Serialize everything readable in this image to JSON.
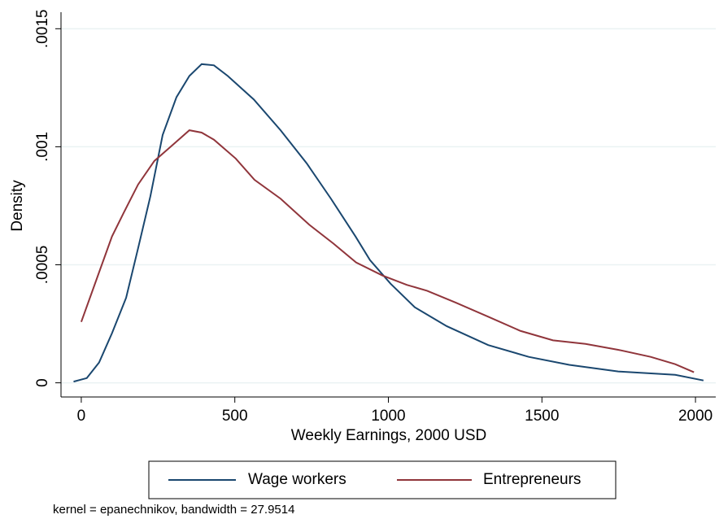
{
  "chart_data": {
    "type": "line",
    "x_label": "Weekly Earnings, 2000 USD",
    "y_label": "Density",
    "note": "kernel = epanechnikov, bandwidth = 27.9514",
    "xlim": [
      -66,
      2066
    ],
    "ylim": [
      -6e-05,
      0.00157
    ],
    "xticks": [
      0,
      500,
      1000,
      1500,
      2000
    ],
    "yticks": [
      0,
      {
        "value": 0.0005,
        "label": ".0005"
      },
      {
        "value": 0.001,
        "label": ".001"
      },
      {
        "value": 0.0015,
        "label": ".0015"
      }
    ],
    "grid": true,
    "legend_position": "bottom",
    "series": [
      {
        "name": "Wage workers",
        "color": "#1a476f",
        "x": [
          -25,
          18,
          58,
          100,
          146,
          185,
          225,
          265,
          310,
          352,
          392,
          432,
          477,
          562,
          649,
          734,
          813,
          893,
          940,
          1007,
          1086,
          1190,
          1325,
          1457,
          1589,
          1748,
          1934,
          2026
        ],
        "values": [
          5e-06,
          2e-05,
          8.6e-05,
          0.00021,
          0.00036,
          0.00057,
          0.00079,
          0.00105,
          0.00121,
          0.0013,
          0.00135,
          0.001345,
          0.0013,
          0.0012,
          0.00107,
          0.00093,
          0.00078,
          0.00062,
          0.00052,
          0.00042,
          0.00032,
          0.00024,
          0.00016,
          0.00011,
          7.6e-05,
          4.8e-05,
          3.4e-05,
          1e-05
        ]
      },
      {
        "name": "Entrepreneurs",
        "color": "#90353b",
        "x": [
          0,
          53,
          100,
          138,
          185,
          238,
          291,
          352,
          392,
          432,
          503,
          564,
          649,
          742,
          821,
          895,
          980,
          1060,
          1126,
          1219,
          1325,
          1430,
          1536,
          1642,
          1748,
          1854,
          1934,
          1995
        ],
        "values": [
          0.000258,
          0.00045,
          0.00062,
          0.00072,
          0.00084,
          0.00094,
          0.001,
          0.00107,
          0.00106,
          0.00103,
          0.00095,
          0.00086,
          0.00078,
          0.00067,
          0.00059,
          0.00051,
          0.000455,
          0.000415,
          0.00039,
          0.00034,
          0.00028,
          0.00022,
          0.00018,
          0.000165,
          0.00014,
          0.00011,
          7.9e-05,
          4.5e-05
        ]
      }
    ]
  }
}
